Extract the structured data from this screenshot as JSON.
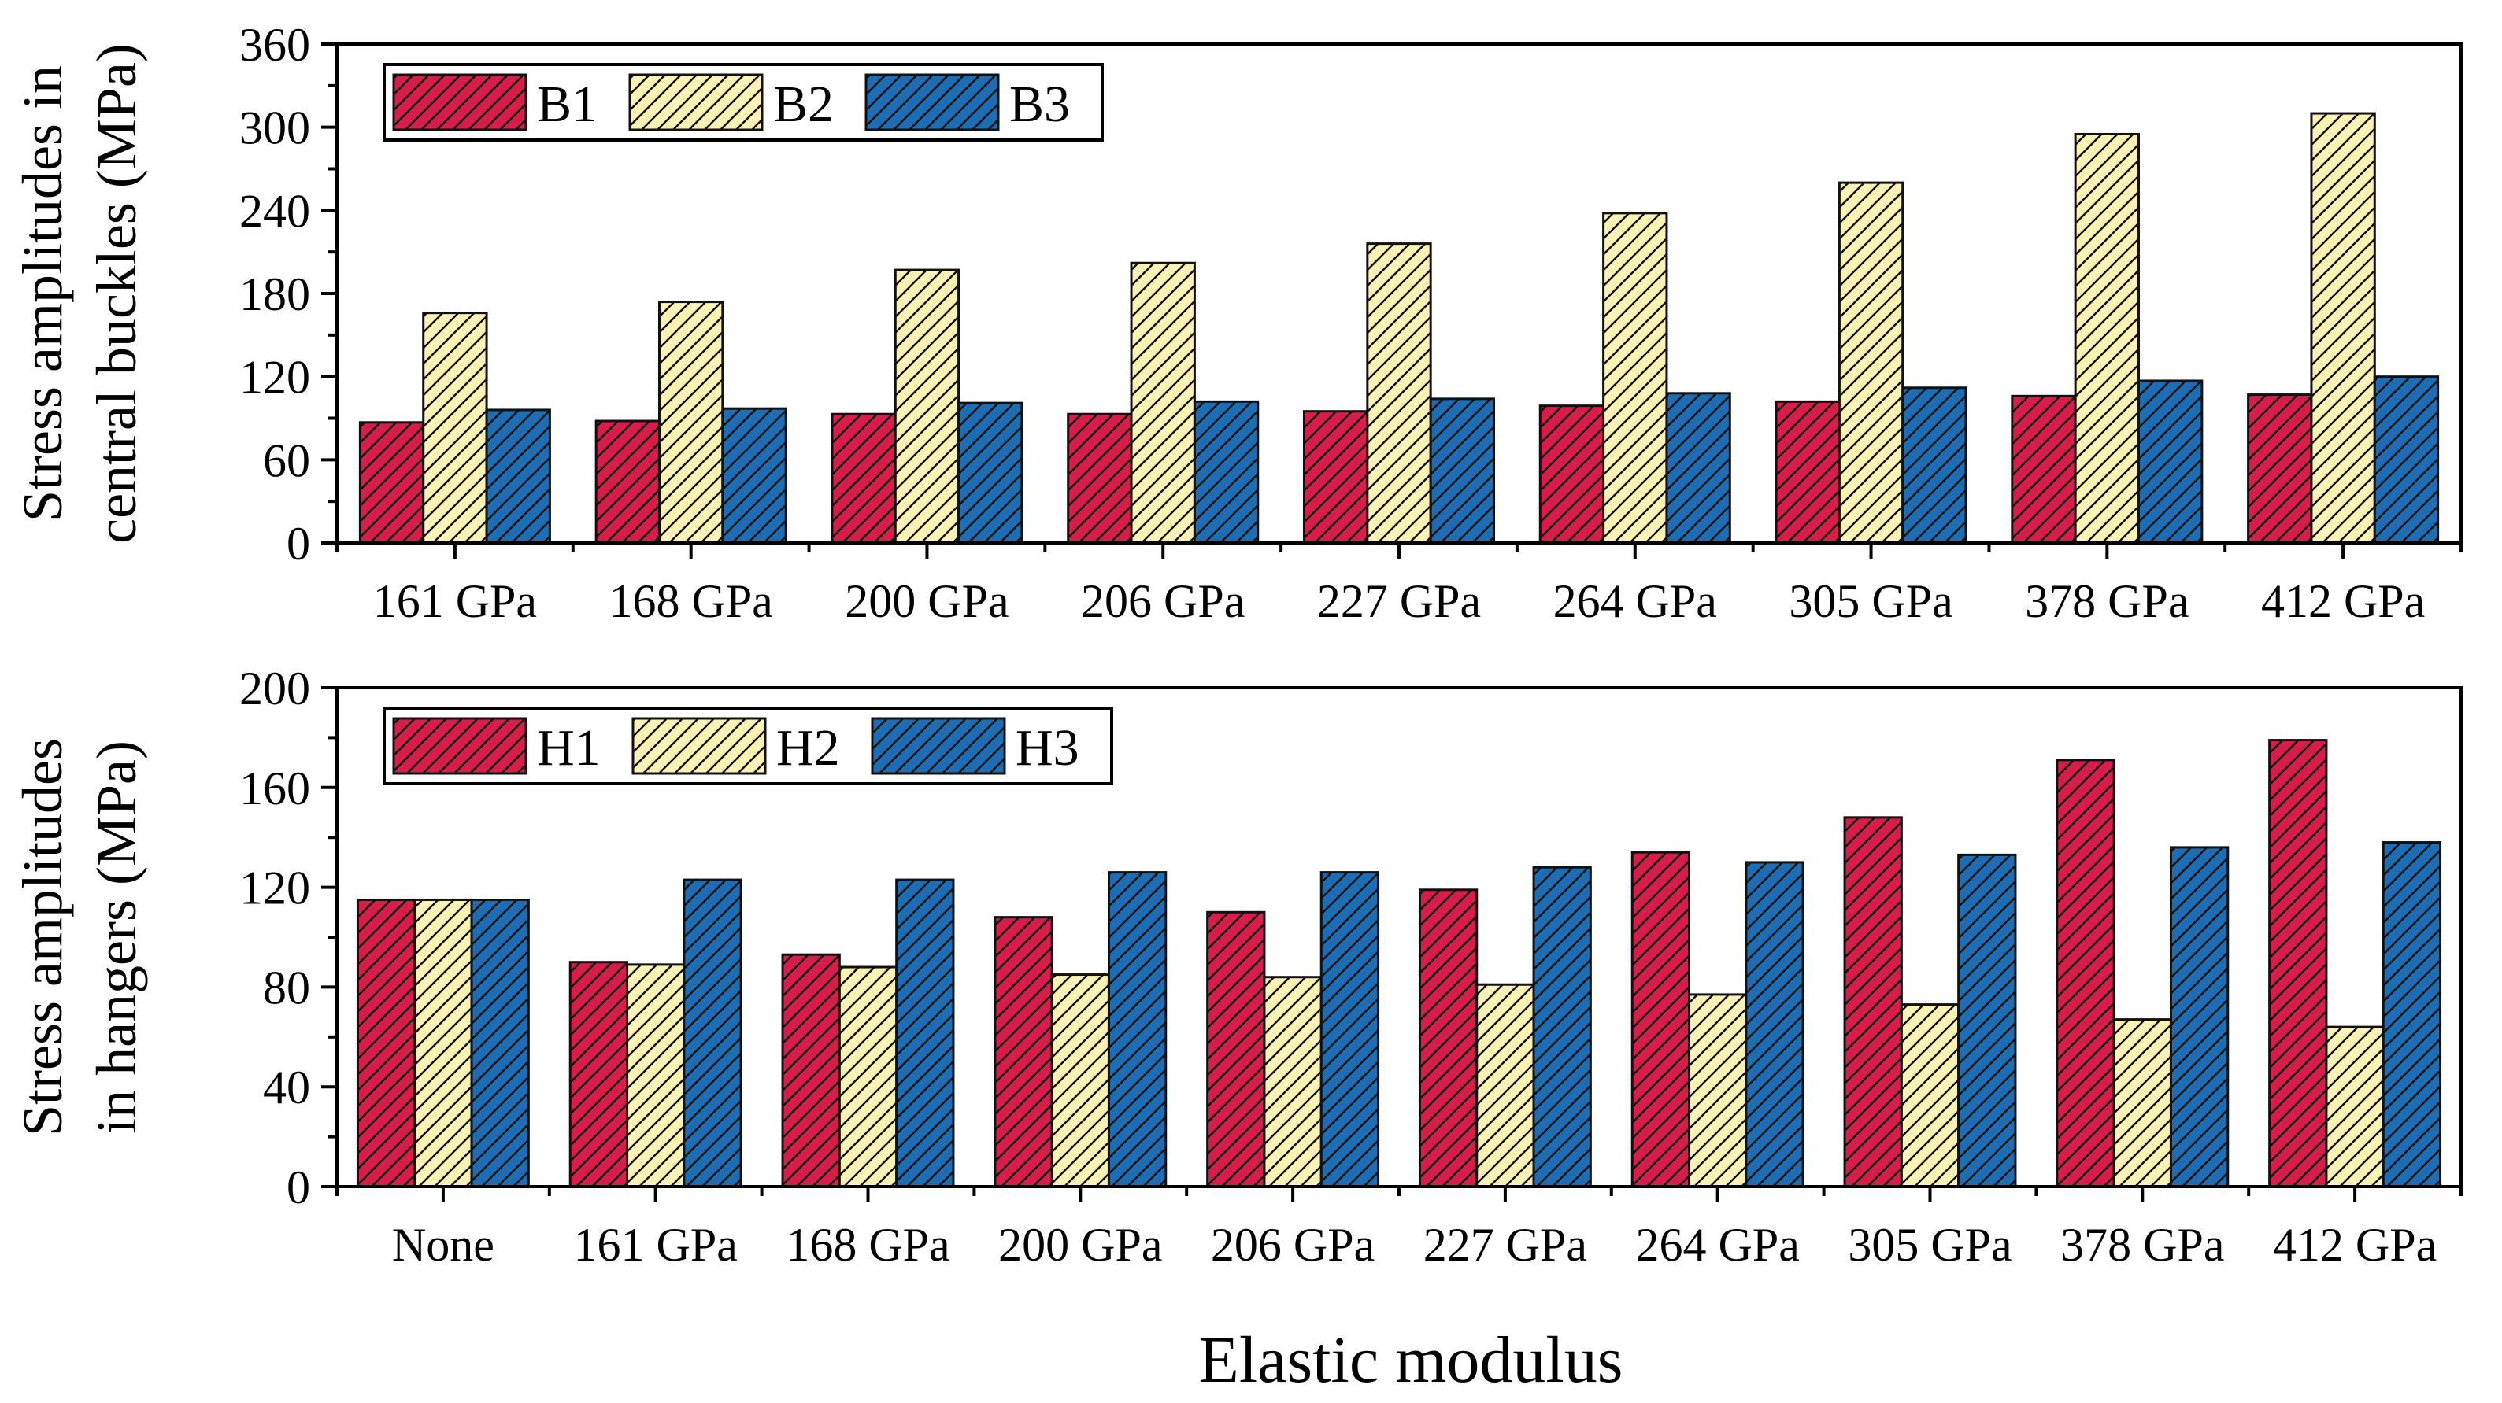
{
  "figure": {
    "shared_xlabel": "Elastic modulus"
  },
  "chart_data": [
    {
      "type": "bar",
      "title": "",
      "xlabel": "",
      "ylabel_lines": [
        "Stress amplitudes in",
        "central buckles (MPa)"
      ],
      "categories": [
        "161 GPa",
        "168 GPa",
        "200 GPa",
        "206 GPa",
        "227 GPa",
        "264 GPa",
        "305 GPa",
        "378 GPa",
        "412 GPa"
      ],
      "ylim": [
        0,
        360
      ],
      "yticks": [
        0,
        60,
        120,
        180,
        240,
        300,
        360
      ],
      "yticks_minor": [
        30,
        90,
        150,
        210,
        270,
        330
      ],
      "legend_position": "top-left",
      "grid": false,
      "series": [
        {
          "name": "B1",
          "color": "#d81e48",
          "values": [
            87,
            88,
            93,
            93,
            95,
            99,
            102,
            106,
            107
          ]
        },
        {
          "name": "B2",
          "color": "#fbf2b4",
          "values": [
            166,
            174,
            197,
            202,
            216,
            238,
            260,
            295,
            310
          ]
        },
        {
          "name": "B3",
          "color": "#1c6db3",
          "values": [
            96,
            97,
            101,
            102,
            104,
            108,
            112,
            117,
            120
          ]
        }
      ]
    },
    {
      "type": "bar",
      "title": "",
      "xlabel": "Elastic modulus",
      "ylabel_lines": [
        "Stress amplitudes",
        "in hangers (MPa)"
      ],
      "categories": [
        "None",
        "161 GPa",
        "168 GPa",
        "200 GPa",
        "206 GPa",
        "227 GPa",
        "264 GPa",
        "305 GPa",
        "378 GPa",
        "412 GPa"
      ],
      "ylim": [
        0,
        200
      ],
      "yticks": [
        0,
        40,
        80,
        120,
        160,
        200
      ],
      "yticks_minor": [
        20,
        60,
        100,
        140,
        180
      ],
      "legend_position": "top-left",
      "grid": false,
      "series": [
        {
          "name": "H1",
          "color": "#d81e48",
          "values": [
            115,
            90,
            93,
            108,
            110,
            119,
            134,
            148,
            171,
            179
          ]
        },
        {
          "name": "H2",
          "color": "#fbf2b4",
          "values": [
            115,
            89,
            88,
            85,
            84,
            81,
            77,
            73,
            67,
            64
          ]
        },
        {
          "name": "H3",
          "color": "#1c6db3",
          "values": [
            115,
            123,
            123,
            126,
            126,
            128,
            130,
            133,
            136,
            138
          ]
        }
      ]
    }
  ]
}
